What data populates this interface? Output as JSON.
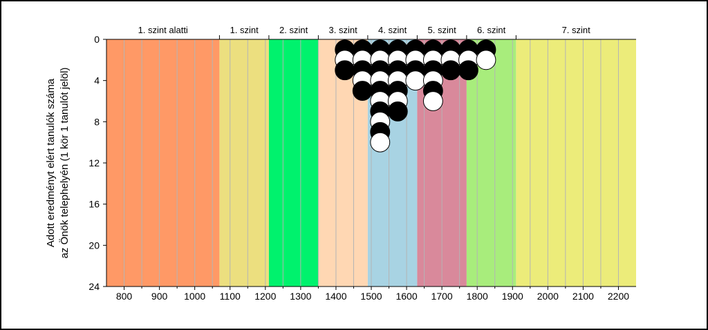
{
  "chart_data": {
    "type": "scatter",
    "xlim": [
      750,
      2250
    ],
    "ylim": [
      0,
      24
    ],
    "y_inverted": true,
    "x_ticks": [
      800,
      900,
      1000,
      1100,
      1200,
      1300,
      1400,
      1500,
      1600,
      1700,
      1800,
      1900,
      2000,
      2100,
      2200
    ],
    "y_ticks": [
      0,
      4,
      8,
      12,
      16,
      20,
      24
    ],
    "x_minor_step": 50,
    "ylabel_lines": [
      "Adott eredményt elért tanulók száma",
      "az Önök telephelyén (1 kör 1 tanulót jelöl)"
    ],
    "grid": "vertical",
    "bands": [
      {
        "label": "1. szint alatti",
        "from": 750,
        "to": 1070,
        "color": "#ff9966"
      },
      {
        "label": "1. szint",
        "from": 1070,
        "to": 1210,
        "color": "#ecdf7f"
      },
      {
        "label": "2. szint",
        "from": 1210,
        "to": 1350,
        "color": "#00f26d"
      },
      {
        "label": "3. szint",
        "from": 1350,
        "to": 1490,
        "color": "#ffd7b3"
      },
      {
        "label": "4. szint",
        "from": 1490,
        "to": 1630,
        "color": "#a8d3e3"
      },
      {
        "label": "5. szint",
        "from": 1630,
        "to": 1770,
        "color": "#d9899b"
      },
      {
        "label": "6. szint",
        "from": 1770,
        "to": 1910,
        "color": "#a8ed7c"
      },
      {
        "label": "7. szint",
        "from": 1910,
        "to": 2250,
        "color": "#ecec7a"
      }
    ],
    "columns": [
      {
        "x": 1425,
        "count": 3
      },
      {
        "x": 1475,
        "count": 5
      },
      {
        "x": 1525,
        "count": 10
      },
      {
        "x": 1575,
        "count": 7
      },
      {
        "x": 1625,
        "count": 4
      },
      {
        "x": 1675,
        "count": 6
      },
      {
        "x": 1725,
        "count": 3
      },
      {
        "x": 1775,
        "count": 3
      },
      {
        "x": 1825,
        "count": 2
      }
    ],
    "marker_colors": [
      "#000000",
      "#ffffff"
    ]
  }
}
